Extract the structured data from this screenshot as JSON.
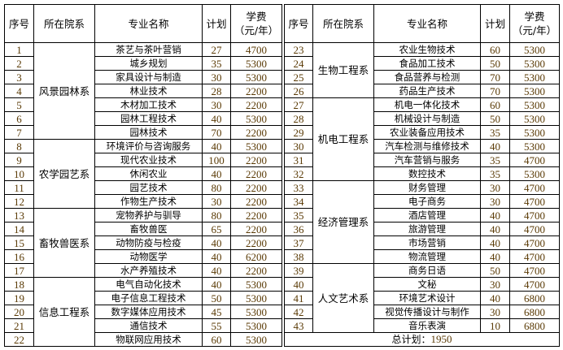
{
  "headers": {
    "seq": "序号",
    "dept": "所在院系",
    "name": "专业名称",
    "plan": "计划",
    "fee_line1": "学费",
    "fee_line2": "（元/年）"
  },
  "left": [
    {
      "dept": "风景园林系",
      "rows": [
        [
          "1",
          "茶艺与茶叶营销",
          "27",
          "4700"
        ],
        [
          "2",
          "城乡规划",
          "35",
          "5300"
        ],
        [
          "3",
          "家具设计与制造",
          "30",
          "5300"
        ],
        [
          "4",
          "林业技术",
          "28",
          "2200"
        ],
        [
          "5",
          "木材加工技术",
          "30",
          "2200"
        ],
        [
          "6",
          "园林工程技术",
          "40",
          "5300"
        ],
        [
          "7",
          "园林技术",
          "70",
          "2200"
        ]
      ]
    },
    {
      "dept": "农学园艺系",
      "rows": [
        [
          "8",
          "环境评价与咨询服务",
          "40",
          "5300"
        ],
        [
          "9",
          "现代农业技术",
          "100",
          "2200"
        ],
        [
          "10",
          "休闲农业",
          "40",
          "2200"
        ],
        [
          "11",
          "园艺技术",
          "80",
          "2200"
        ],
        [
          "12",
          "作物生产技术",
          "30",
          "2200"
        ]
      ]
    },
    {
      "dept": "畜牧兽医系",
      "rows": [
        [
          "13",
          "宠物养护与驯导",
          "80",
          "2200"
        ],
        [
          "14",
          "畜牧兽医",
          "65",
          "2200"
        ],
        [
          "15",
          "动物防疫与检疫",
          "40",
          "2200"
        ],
        [
          "16",
          "动物医学",
          "40",
          "6200"
        ],
        [
          "17",
          "水产养殖技术",
          "40",
          "2200"
        ]
      ]
    },
    {
      "dept": "信息工程系",
      "rows": [
        [
          "18",
          "电气自动化技术",
          "40",
          "5300"
        ],
        [
          "19",
          "电子信息工程技术",
          "50",
          "5300"
        ],
        [
          "20",
          "数字媒体应用技术",
          "45",
          "5300"
        ],
        [
          "21",
          "通信技术",
          "55",
          "5300"
        ],
        [
          "22",
          "物联网应用技术",
          "60",
          "5300"
        ]
      ]
    }
  ],
  "right": [
    {
      "dept": "生物工程系",
      "rows": [
        [
          "23",
          "农业生物技术",
          "60",
          "5300"
        ],
        [
          "24",
          "食品加工技术",
          "50",
          "5300"
        ],
        [
          "25",
          "食品营养与检测",
          "70",
          "5300"
        ],
        [
          "26",
          "药品生产技术",
          "70",
          "5300"
        ]
      ]
    },
    {
      "dept": "机电工程系",
      "rows": [
        [
          "27",
          "机电一体化技术",
          "60",
          "5300"
        ],
        [
          "28",
          "机械设计与制造",
          "50",
          "5300"
        ],
        [
          "29",
          "农业装备应用技术",
          "35",
          "5300"
        ],
        [
          "30",
          "汽车检测与维修技术",
          "40",
          "5300"
        ],
        [
          "31",
          "汽车营销与服务",
          "35",
          "4700"
        ],
        [
          "32",
          "数控技术",
          "35",
          "5300"
        ]
      ]
    },
    {
      "dept": "经济管理系",
      "rows": [
        [
          "33",
          "财务管理",
          "30",
          "4700"
        ],
        [
          "34",
          "电子商务",
          "30",
          "4700"
        ],
        [
          "35",
          "酒店管理",
          "40",
          "4700"
        ],
        [
          "36",
          "旅游管理",
          "40",
          "4700"
        ],
        [
          "37",
          "市场营销",
          "40",
          "4700"
        ],
        [
          "38",
          "物流管理",
          "40",
          "4700"
        ]
      ]
    },
    {
      "dept": "人文艺术系",
      "rows": [
        [
          "39",
          "商务日语",
          "50",
          "4700"
        ],
        [
          "40",
          "文秘",
          "30",
          "4700"
        ],
        [
          "41",
          "环境艺术设计",
          "40",
          "6800"
        ],
        [
          "42",
          "视觉传播设计与制作",
          "30",
          "6800"
        ],
        [
          "43",
          "音乐表演",
          "10",
          "6800"
        ]
      ]
    }
  ],
  "total": {
    "label": "总计划：",
    "value": "1950"
  }
}
